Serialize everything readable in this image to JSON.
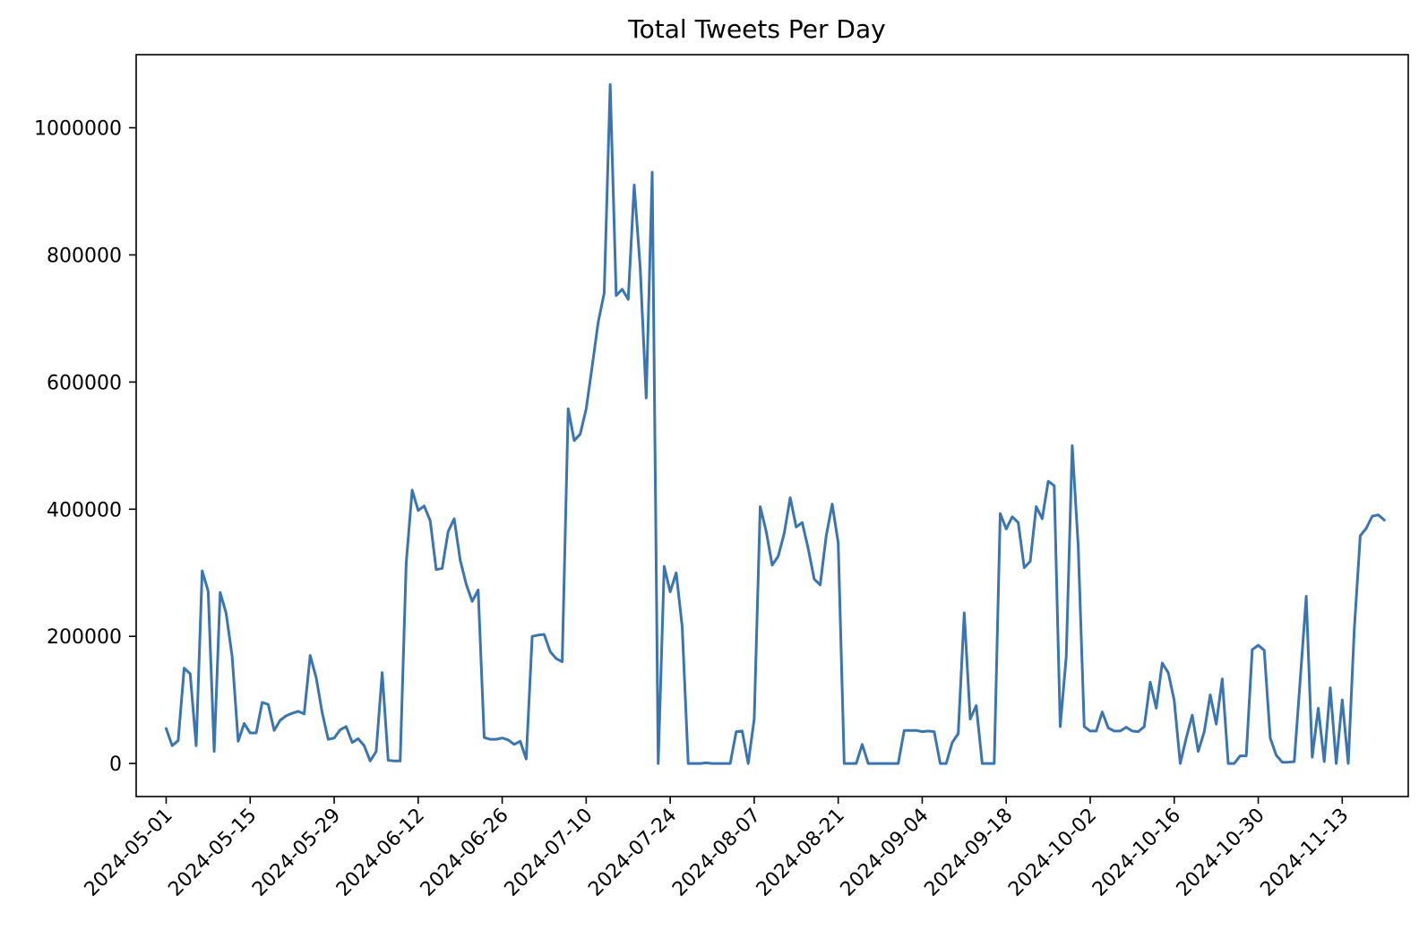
{
  "chart_data": {
    "type": "line",
    "title": "Total Tweets Per Day",
    "xlabel": "",
    "ylabel": "",
    "x_start": "2024-05-01",
    "x_end": "2024-11-20",
    "xlim": [
      "2024-04-26",
      "2024-11-24"
    ],
    "ylim": [
      -52000,
      1115000
    ],
    "x_ticks": [
      "2024-05-01",
      "2024-05-15",
      "2024-05-29",
      "2024-06-12",
      "2024-06-26",
      "2024-07-10",
      "2024-07-24",
      "2024-08-07",
      "2024-08-21",
      "2024-09-04",
      "2024-09-18",
      "2024-10-02",
      "2024-10-16",
      "2024-10-30",
      "2024-11-13"
    ],
    "y_ticks": [
      0,
      200000,
      400000,
      600000,
      800000,
      1000000
    ],
    "y_tick_labels": [
      "0",
      "200000",
      "400000",
      "600000",
      "800000",
      "1000000"
    ],
    "grid": false,
    "legend": "none",
    "series": [
      {
        "color": "#3a75b0",
        "values": [
          55000,
          28000,
          36000,
          150000,
          141000,
          28000,
          303000,
          271000,
          19000,
          269000,
          236000,
          168000,
          35000,
          63000,
          48000,
          48000,
          96000,
          93000,
          52000,
          68000,
          75000,
          79000,
          82000,
          78000,
          170000,
          135000,
          80000,
          38000,
          40000,
          53000,
          58000,
          33000,
          39000,
          28000,
          4000,
          19000,
          143000,
          5000,
          4000,
          4000,
          315000,
          430000,
          398000,
          405000,
          382000,
          305000,
          307000,
          365000,
          385000,
          320000,
          282000,
          255000,
          273000,
          41000,
          38000,
          38000,
          40000,
          37000,
          30000,
          35000,
          7000,
          200000,
          202000,
          203000,
          176000,
          165000,
          160000,
          558000,
          508000,
          518000,
          558000,
          625000,
          694000,
          740000,
          1068000,
          736000,
          746000,
          730000,
          910000,
          780000,
          575000,
          930000,
          0,
          310000,
          270000,
          300000,
          215000,
          0,
          0,
          0,
          1000,
          0,
          0,
          0,
          0,
          50000,
          51000,
          0,
          70000,
          404000,
          365000,
          312000,
          326000,
          362000,
          418000,
          372000,
          379000,
          338000,
          290000,
          281000,
          358000,
          408000,
          347000,
          0,
          0,
          0,
          30000,
          0,
          0,
          0,
          0,
          0,
          0,
          52000,
          52000,
          52000,
          50000,
          51000,
          50000,
          0,
          0,
          33000,
          47000,
          237000,
          70000,
          91000,
          0,
          0,
          0,
          393000,
          369000,
          388000,
          379000,
          308000,
          318000,
          404000,
          385000,
          444000,
          437000,
          58000,
          168000,
          500000,
          342000,
          58000,
          51000,
          51000,
          81000,
          56000,
          51000,
          51000,
          57000,
          51000,
          50000,
          58000,
          128000,
          87000,
          158000,
          143000,
          99000,
          0,
          40000,
          76000,
          19000,
          50000,
          108000,
          62000,
          133000,
          0,
          0,
          12000,
          12000,
          179000,
          186000,
          178000,
          40000,
          13000,
          2000,
          2000,
          3000,
          132000,
          263000,
          10000,
          87000,
          3000,
          119000,
          0,
          100000,
          0,
          210000,
          358000,
          370000,
          389000,
          391000,
          383000
        ]
      }
    ]
  }
}
